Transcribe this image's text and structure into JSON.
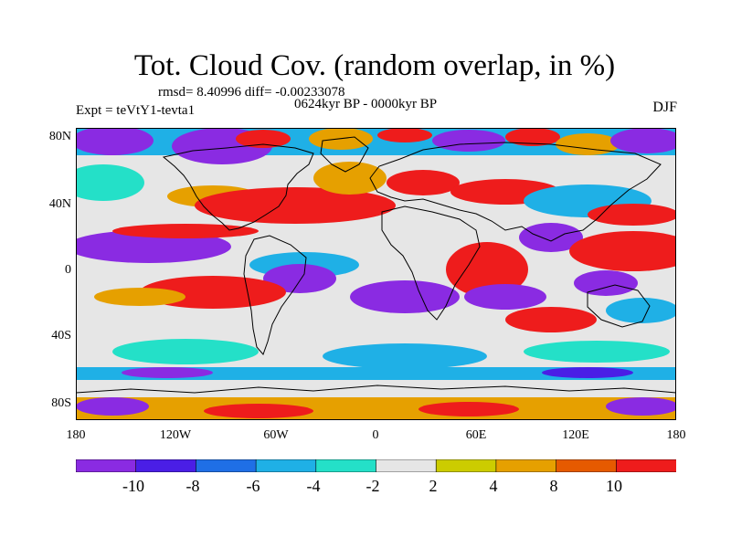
{
  "title": "Tot. Cloud Cov. (random overlap, in %)",
  "stats": "rmsd= 8.40996 diff= -0.00233078",
  "period": "0624kyr BP - 0000kyr BP",
  "experiment": "Expt = teVtY1-tevta1",
  "season": "DJF",
  "lat_labels": [
    "80N",
    "40N",
    "0",
    "40S",
    "80S"
  ],
  "lon_labels": [
    "180",
    "120W",
    "60W",
    "0",
    "60E",
    "120E",
    "180"
  ],
  "colorbar": {
    "labels": [
      "-10",
      "-8",
      "-6",
      "-4",
      "-2",
      "2",
      "4",
      "8",
      "10"
    ],
    "colors": [
      "#8a2be2",
      "#4a1ee6",
      "#1f6fe6",
      "#1fb0e6",
      "#24e0c8",
      "#e6e6e6",
      "#cccc00",
      "#e6a000",
      "#e65a00",
      "#ee1c1c"
    ],
    "blank_label": "blank"
  }
}
